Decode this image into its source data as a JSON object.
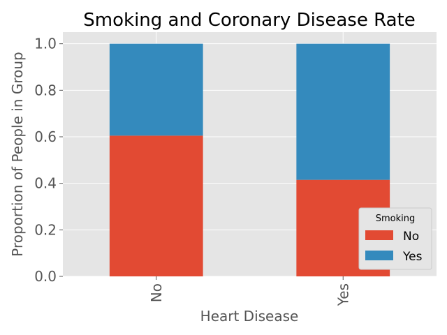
{
  "chart_data": {
    "type": "bar",
    "stacked": true,
    "title": "Smoking and Coronary Disease Rate",
    "xlabel": "Heart Disease",
    "ylabel": "Proportion of People in Group",
    "categories": [
      "No",
      "Yes"
    ],
    "series": [
      {
        "name": "No",
        "values": [
          0.605,
          0.415
        ],
        "color": "#E24A33"
      },
      {
        "name": "Yes",
        "values": [
          0.395,
          0.585
        ],
        "color": "#348ABD"
      }
    ],
    "ylim": [
      0,
      1.05
    ],
    "yticks": [
      "0.0",
      "0.2",
      "0.4",
      "0.6",
      "0.8",
      "1.0"
    ],
    "grid": true,
    "legend": {
      "title": "Smoking",
      "position": "lower-right"
    },
    "colors": {
      "plot_background": "#E5E5E5",
      "grid": "#FFFFFF"
    }
  }
}
